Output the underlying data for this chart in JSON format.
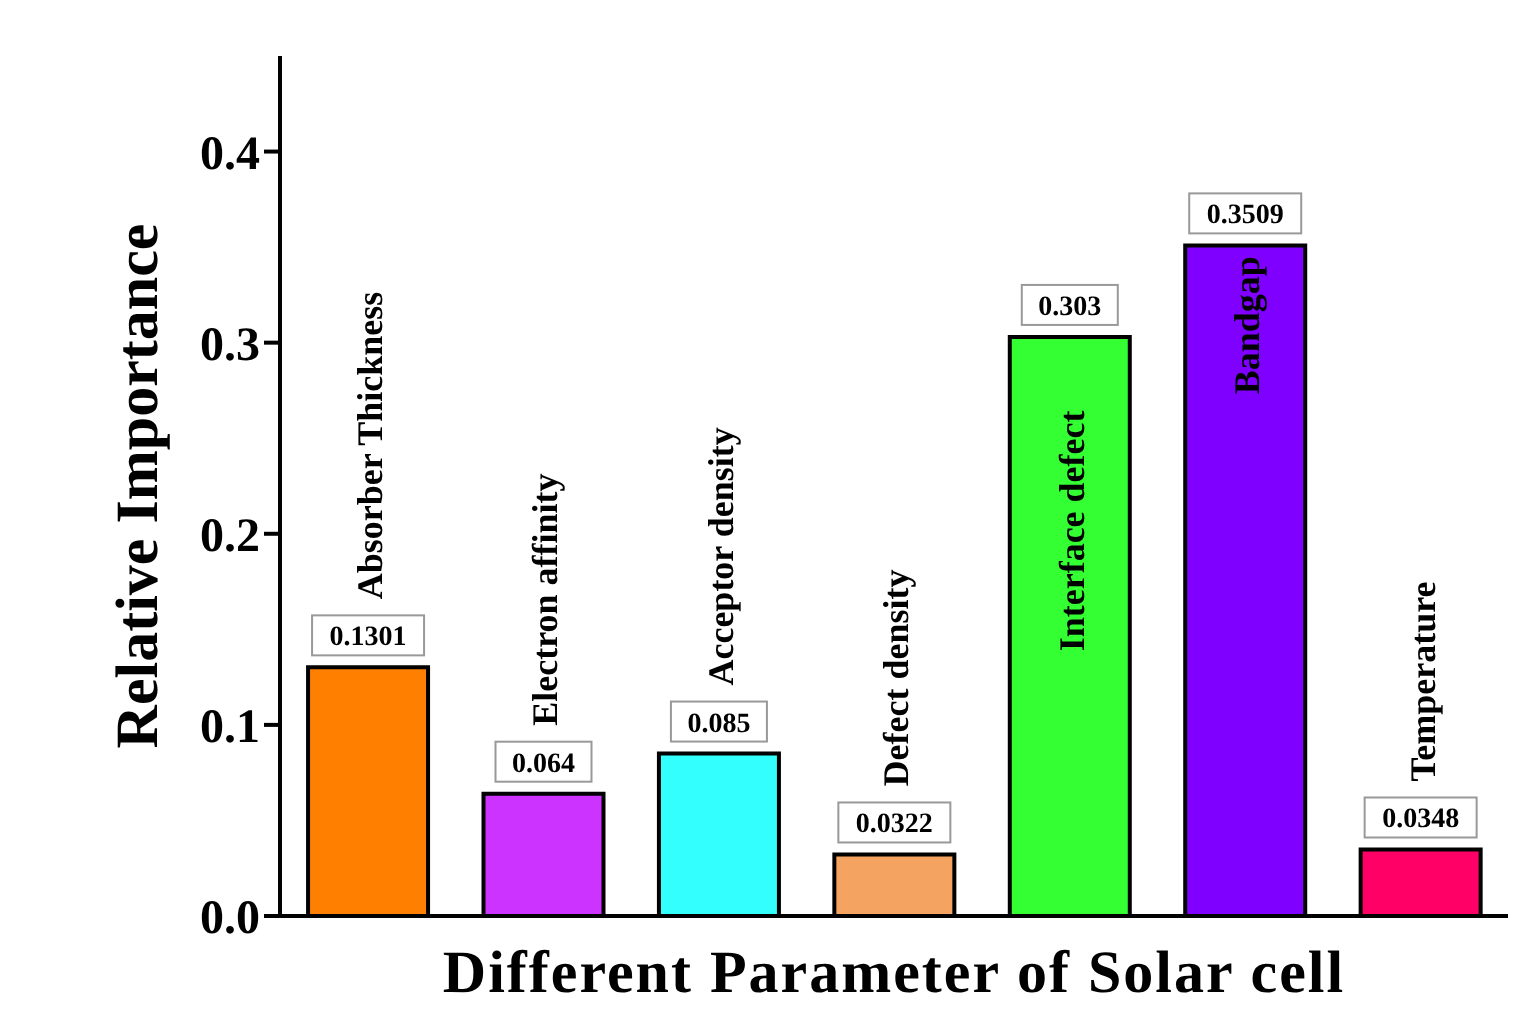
{
  "chart_data": {
    "type": "bar",
    "xlabel": "Different Parameter of Solar cell",
    "ylabel": "Relative Importance",
    "categories": [
      "Absorber Thickness",
      "Electron affinity",
      "Acceptor density",
      "Defect density",
      "Interface defect",
      "Bandgap",
      "Temperature"
    ],
    "values": [
      0.1301,
      0.064,
      0.085,
      0.0322,
      0.303,
      0.3509,
      0.0348
    ],
    "colors": [
      "#ff8000",
      "#cc33ff",
      "#33ffff",
      "#f4a460",
      "#33ff33",
      "#8000ff",
      "#ff0066"
    ],
    "ylim": [
      0,
      0.45
    ],
    "yticks": [
      {
        "value": 0,
        "label": "0.0"
      },
      0.1,
      0.2,
      0.3,
      0.4
    ],
    "data_labels": true
  }
}
